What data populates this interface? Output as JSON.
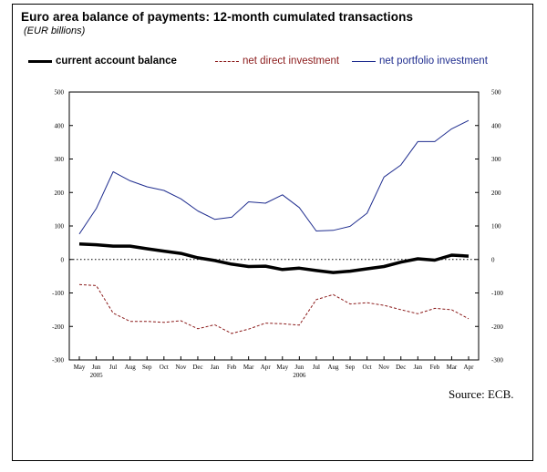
{
  "header": {
    "title": "Euro area balance of payments: 12-month cumulated transactions",
    "subtitle": "(EUR billions)"
  },
  "legend": [
    {
      "label": "current account balance",
      "color": "#000000",
      "style": "thick"
    },
    {
      "label": "net direct investment",
      "color": "#8b1a1a",
      "style": "dashed"
    },
    {
      "label": "net portfolio investment",
      "color": "#1f2d8f",
      "style": "thin"
    }
  ],
  "source": "Source: ECB.",
  "chart_data": {
    "type": "line",
    "categories": [
      "May",
      "Jun",
      "Jul",
      "Aug",
      "Sep",
      "Oct",
      "Nov",
      "Dec",
      "Jan",
      "Feb",
      "Mar",
      "Apr",
      "May",
      "Jun",
      "Jul",
      "Aug",
      "Sep",
      "Oct",
      "Nov",
      "Dec",
      "Jan",
      "Feb",
      "Mar",
      "Apr"
    ],
    "year_labels": [
      {
        "label": "2005",
        "index": 1
      },
      {
        "label": "2006",
        "index": 13
      }
    ],
    "ylim": [
      -300,
      500
    ],
    "yticks": [
      -300,
      -200,
      -100,
      0,
      100,
      200,
      300,
      400,
      500
    ],
    "reference_line": 0,
    "series": [
      {
        "name": "current account balance",
        "color": "#000000",
        "style": "thick",
        "values": [
          46,
          44,
          40,
          40,
          32,
          25,
          18,
          5,
          -3,
          -14,
          -21,
          -20,
          -30,
          -26,
          -33,
          -39,
          -35,
          -28,
          -21,
          -8,
          2,
          -2,
          13,
          10
        ]
      },
      {
        "name": "net direct investment",
        "color": "#8b1a1a",
        "style": "dashed",
        "values": [
          -75,
          -78,
          -160,
          -185,
          -185,
          -188,
          -183,
          -207,
          -195,
          -221,
          -208,
          -190,
          -192,
          -196,
          -120,
          -105,
          -133,
          -129,
          -137,
          -150,
          -162,
          -146,
          -150,
          -177
        ]
      },
      {
        "name": "net portfolio investment",
        "color": "#1f2d8f",
        "style": "thin",
        "values": [
          76,
          152,
          262,
          235,
          217,
          206,
          181,
          145,
          120,
          126,
          172,
          168,
          193,
          155,
          85,
          87,
          99,
          138,
          246,
          282,
          352,
          352,
          390,
          415
        ]
      }
    ]
  }
}
